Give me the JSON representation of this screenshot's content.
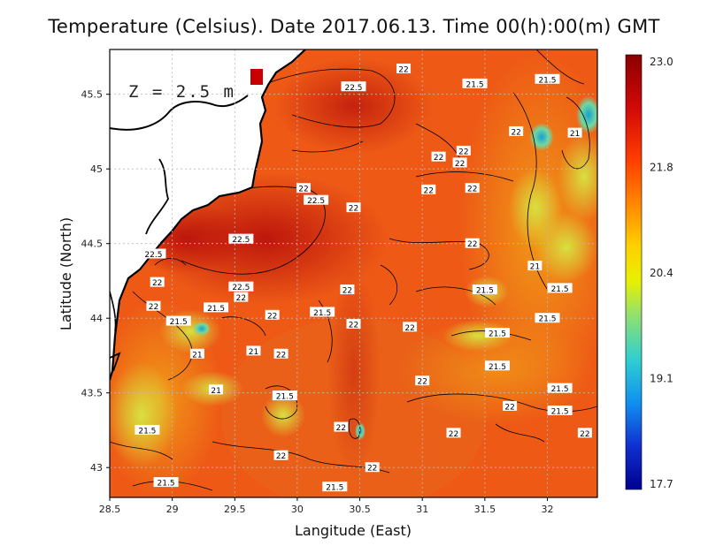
{
  "title": "Temperature (Celsius). Date 2017.06.13. Time 00(h):00(m)  GMT",
  "depth_label": "Z = 2.5 m",
  "map": {
    "xlabel": "Langitude (East)",
    "ylabel": "Latitude (North)",
    "lon_range": [
      28.5,
      32.4
    ],
    "lat_range": [
      42.8,
      45.8
    ],
    "lon_ticks": [
      "28.5",
      "29",
      "29.5",
      "30",
      "30.5",
      "31",
      "31.5",
      "32"
    ],
    "lat_ticks": [
      "43",
      "43.5",
      "44",
      "44.5",
      "45",
      "45.5"
    ],
    "grid": true,
    "colorbar": {
      "min": 17.7,
      "max": 23.0,
      "ticks": [
        "23.0",
        "21.8",
        "20.4",
        "19.1",
        "17.7"
      ],
      "colors": [
        "#8b0000",
        "#e01010",
        "#ff6a00",
        "#ffb000",
        "#f0f000",
        "#8ce060",
        "#30d0c0",
        "#1070e0",
        "#1010c0",
        "#000090"
      ]
    },
    "contour_labels": [
      {
        "text": "22",
        "lon": 30.85,
        "lat": 45.67
      },
      {
        "text": "22.5",
        "lon": 30.45,
        "lat": 45.55
      },
      {
        "text": "21.5",
        "lon": 31.42,
        "lat": 45.57
      },
      {
        "text": "21.5",
        "lon": 32.0,
        "lat": 45.6
      },
      {
        "text": "22",
        "lon": 31.75,
        "lat": 45.25
      },
      {
        "text": "21",
        "lon": 32.22,
        "lat": 45.24
      },
      {
        "text": "22",
        "lon": 31.33,
        "lat": 45.12
      },
      {
        "text": "22",
        "lon": 31.13,
        "lat": 45.08
      },
      {
        "text": "22",
        "lon": 31.3,
        "lat": 45.04
      },
      {
        "text": "22",
        "lon": 30.05,
        "lat": 44.87
      },
      {
        "text": "22",
        "lon": 31.05,
        "lat": 44.86
      },
      {
        "text": "22",
        "lon": 31.4,
        "lat": 44.87
      },
      {
        "text": "22.5",
        "lon": 30.15,
        "lat": 44.79
      },
      {
        "text": "22",
        "lon": 30.45,
        "lat": 44.74
      },
      {
        "text": "22.5",
        "lon": 29.55,
        "lat": 44.53
      },
      {
        "text": "22",
        "lon": 31.4,
        "lat": 44.5
      },
      {
        "text": "22.5",
        "lon": 28.85,
        "lat": 44.43
      },
      {
        "text": "21",
        "lon": 31.9,
        "lat": 44.35
      },
      {
        "text": "22",
        "lon": 28.88,
        "lat": 44.24
      },
      {
        "text": "22.5",
        "lon": 29.55,
        "lat": 44.21
      },
      {
        "text": "22",
        "lon": 29.55,
        "lat": 44.14
      },
      {
        "text": "22",
        "lon": 30.4,
        "lat": 44.19
      },
      {
        "text": "21.5",
        "lon": 31.5,
        "lat": 44.19
      },
      {
        "text": "21.5",
        "lon": 32.1,
        "lat": 44.2
      },
      {
        "text": "22",
        "lon": 28.85,
        "lat": 44.08
      },
      {
        "text": "21.5",
        "lon": 29.35,
        "lat": 44.07
      },
      {
        "text": "21.5",
        "lon": 29.05,
        "lat": 43.98
      },
      {
        "text": "22",
        "lon": 29.8,
        "lat": 44.02
      },
      {
        "text": "21.5",
        "lon": 30.2,
        "lat": 44.04
      },
      {
        "text": "22",
        "lon": 30.45,
        "lat": 43.96
      },
      {
        "text": "21.5",
        "lon": 32.0,
        "lat": 44.0
      },
      {
        "text": "22",
        "lon": 30.9,
        "lat": 43.94
      },
      {
        "text": "21.5",
        "lon": 31.6,
        "lat": 43.9
      },
      {
        "text": "21",
        "lon": 29.65,
        "lat": 43.78
      },
      {
        "text": "22",
        "lon": 29.87,
        "lat": 43.76
      },
      {
        "text": "21",
        "lon": 29.2,
        "lat": 43.76
      },
      {
        "text": "21.5",
        "lon": 31.6,
        "lat": 43.68
      },
      {
        "text": "22",
        "lon": 31.0,
        "lat": 43.58
      },
      {
        "text": "21",
        "lon": 29.35,
        "lat": 43.52
      },
      {
        "text": "21.5",
        "lon": 29.9,
        "lat": 43.48
      },
      {
        "text": "21.5",
        "lon": 32.1,
        "lat": 43.53
      },
      {
        "text": "22",
        "lon": 31.7,
        "lat": 43.41
      },
      {
        "text": "21.5",
        "lon": 32.1,
        "lat": 43.38
      },
      {
        "text": "22",
        "lon": 30.35,
        "lat": 43.27
      },
      {
        "text": "21.5",
        "lon": 28.8,
        "lat": 43.25
      },
      {
        "text": "22",
        "lon": 31.25,
        "lat": 43.23
      },
      {
        "text": "22",
        "lon": 32.3,
        "lat": 43.23
      },
      {
        "text": "22",
        "lon": 29.87,
        "lat": 43.08
      },
      {
        "text": "22",
        "lon": 30.6,
        "lat": 43.0
      },
      {
        "text": "21.5",
        "lon": 28.95,
        "lat": 42.9
      },
      {
        "text": "21.5",
        "lon": 30.3,
        "lat": 42.87
      }
    ]
  }
}
